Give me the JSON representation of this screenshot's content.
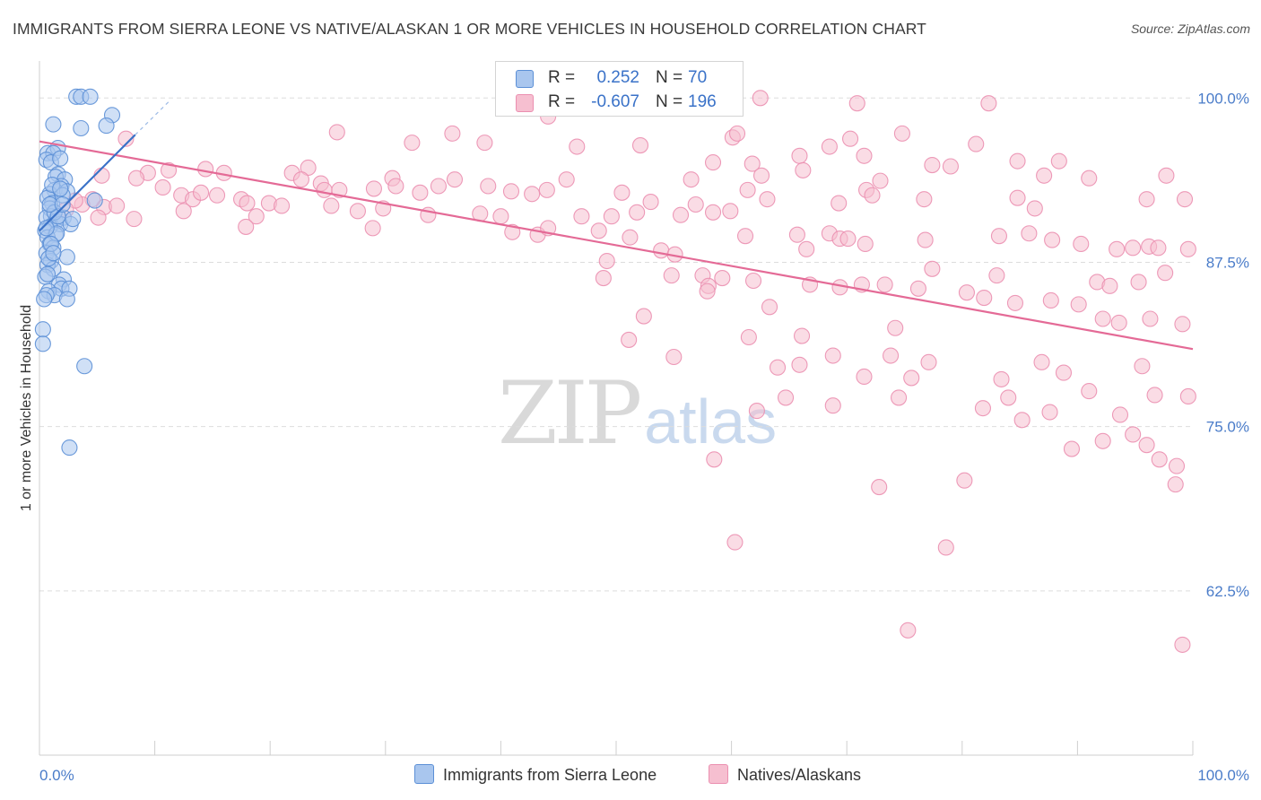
{
  "title": "IMMIGRANTS FROM SIERRA LEONE VS NATIVE/ALASKAN 1 OR MORE VEHICLES IN HOUSEHOLD CORRELATION CHART",
  "source": "Source: ZipAtlas.com",
  "watermark": {
    "zip": "ZIP",
    "atlas": "atlas"
  },
  "legend": {
    "r_label": "R =",
    "n_label": "N =",
    "rows": [
      {
        "name": "Immigrants from Sierra Leone",
        "r": "0.252",
        "n": "70"
      },
      {
        "name": "Natives/Alaskans",
        "r": "-0.607",
        "n": "196"
      }
    ]
  },
  "colors": {
    "blue_fill": "#a9c6ee",
    "blue_stroke": "#5b8fd6",
    "blue_line": "#3a72c8",
    "pink_fill": "#f6bfd0",
    "pink_stroke": "#eb8fb0",
    "pink_line": "#e46a96",
    "axis_label": "#4a7cc9",
    "grid": "#dddddd"
  },
  "chart_data": {
    "type": "scatter",
    "title": "IMMIGRANTS FROM SIERRA LEONE VS NATIVE/ALASKAN 1 OR MORE VEHICLES IN HOUSEHOLD CORRELATION CHART",
    "xlabel": "",
    "ylabel": "1 or more Vehicles in Household",
    "xlim": [
      0,
      100
    ],
    "ylim": [
      50,
      102
    ],
    "x_tick_labels": [
      {
        "value": 0,
        "label": "0.0%"
      },
      {
        "value": 100,
        "label": "100.0%"
      }
    ],
    "y_tick_labels": [
      {
        "value": 100,
        "label": "100.0%"
      },
      {
        "value": 87.5,
        "label": "87.5%"
      },
      {
        "value": 75,
        "label": "75.0%"
      },
      {
        "value": 62.5,
        "label": "62.5%"
      }
    ],
    "series": [
      {
        "name": "Immigrants from Sierra Leone",
        "r": 0.252,
        "n": 70,
        "trend": {
          "x0": 0,
          "y0": 89.9,
          "x1": 8.3,
          "y1": 97.2,
          "dashed_to_x": 11.3,
          "dashed_to_y": 99.8
        },
        "points": [
          [
            3.2,
            100.1
          ],
          [
            3.6,
            100.1
          ],
          [
            4.4,
            100.1
          ],
          [
            6.3,
            98.7
          ],
          [
            1.2,
            98.0
          ],
          [
            5.8,
            97.9
          ],
          [
            3.6,
            97.7
          ],
          [
            0.7,
            95.8
          ],
          [
            1.6,
            96.2
          ],
          [
            1.2,
            95.8
          ],
          [
            0.6,
            95.3
          ],
          [
            1.0,
            95.1
          ],
          [
            1.8,
            95.4
          ],
          [
            1.6,
            94.2
          ],
          [
            1.4,
            94.0
          ],
          [
            2.2,
            93.8
          ],
          [
            1.9,
            93.3
          ],
          [
            1.3,
            93.0
          ],
          [
            0.9,
            92.7
          ],
          [
            2.4,
            92.9
          ],
          [
            0.7,
            92.4
          ],
          [
            1.1,
            92.0
          ],
          [
            0.9,
            91.6
          ],
          [
            1.3,
            91.3
          ],
          [
            1.0,
            91.0
          ],
          [
            0.6,
            90.9
          ],
          [
            1.4,
            90.6
          ],
          [
            2.1,
            90.9
          ],
          [
            1.8,
            90.4
          ],
          [
            0.9,
            90.2
          ],
          [
            2.7,
            90.4
          ],
          [
            0.5,
            89.9
          ],
          [
            1.4,
            89.6
          ],
          [
            0.7,
            89.4
          ],
          [
            0.9,
            88.9
          ],
          [
            1.2,
            88.6
          ],
          [
            0.6,
            88.2
          ],
          [
            2.4,
            87.9
          ],
          [
            1.0,
            87.6
          ],
          [
            0.7,
            87.3
          ],
          [
            1.2,
            87.0
          ],
          [
            0.5,
            86.4
          ],
          [
            2.1,
            86.2
          ],
          [
            1.7,
            85.8
          ],
          [
            1.9,
            85.5
          ],
          [
            0.8,
            85.3
          ],
          [
            1.3,
            85.0
          ],
          [
            0.6,
            85.0
          ],
          [
            2.6,
            85.5
          ],
          [
            2.4,
            84.7
          ],
          [
            0.3,
            82.4
          ],
          [
            0.3,
            81.3
          ],
          [
            3.9,
            79.6
          ],
          [
            2.6,
            73.4
          ],
          [
            4.8,
            92.2
          ],
          [
            1.3,
            91.3
          ],
          [
            2.0,
            92.6
          ],
          [
            1.5,
            89.7
          ],
          [
            0.8,
            87.8
          ],
          [
            1.1,
            93.4
          ],
          [
            0.7,
            86.6
          ],
          [
            1.6,
            91.0
          ],
          [
            2.9,
            90.8
          ],
          [
            0.4,
            84.7
          ],
          [
            1.0,
            88.9
          ],
          [
            1.8,
            93.1
          ],
          [
            0.9,
            91.9
          ],
          [
            1.2,
            88.2
          ],
          [
            2.0,
            91.9
          ],
          [
            0.6,
            90.1
          ]
        ]
      },
      {
        "name": "Natives/Alaskans",
        "r": -0.607,
        "n": 196,
        "trend": {
          "x0": 0,
          "y0": 96.7,
          "x1": 100,
          "y1": 80.9
        },
        "points": [
          [
            62.5,
            100.0
          ],
          [
            70.9,
            99.6
          ],
          [
            82.3,
            99.6
          ],
          [
            44.1,
            98.6
          ],
          [
            25.8,
            97.4
          ],
          [
            35.8,
            97.3
          ],
          [
            7.5,
            96.9
          ],
          [
            60.1,
            97.0
          ],
          [
            60.5,
            97.3
          ],
          [
            74.8,
            97.3
          ],
          [
            70.3,
            96.9
          ],
          [
            68.5,
            96.3
          ],
          [
            46.6,
            96.3
          ],
          [
            32.3,
            96.6
          ],
          [
            38.6,
            96.6
          ],
          [
            52.1,
            96.4
          ],
          [
            71.5,
            95.6
          ],
          [
            81.2,
            96.5
          ],
          [
            65.9,
            95.6
          ],
          [
            58.4,
            95.1
          ],
          [
            61.8,
            95.0
          ],
          [
            84.8,
            95.2
          ],
          [
            88.4,
            95.2
          ],
          [
            79.0,
            94.8
          ],
          [
            77.4,
            94.9
          ],
          [
            66.2,
            94.5
          ],
          [
            21.9,
            94.3
          ],
          [
            23.3,
            94.7
          ],
          [
            14.4,
            94.6
          ],
          [
            16.0,
            94.3
          ],
          [
            11.2,
            94.5
          ],
          [
            9.4,
            94.3
          ],
          [
            5.4,
            94.1
          ],
          [
            8.4,
            93.9
          ],
          [
            22.7,
            93.8
          ],
          [
            30.6,
            93.9
          ],
          [
            36.0,
            93.8
          ],
          [
            45.7,
            93.8
          ],
          [
            56.5,
            93.8
          ],
          [
            62.6,
            94.1
          ],
          [
            72.9,
            93.7
          ],
          [
            91.0,
            93.9
          ],
          [
            87.1,
            94.1
          ],
          [
            97.7,
            94.1
          ],
          [
            24.4,
            93.5
          ],
          [
            24.7,
            93.0
          ],
          [
            26.0,
            93.0
          ],
          [
            29.0,
            93.1
          ],
          [
            30.9,
            93.3
          ],
          [
            33.0,
            92.8
          ],
          [
            34.6,
            93.3
          ],
          [
            38.9,
            93.3
          ],
          [
            40.9,
            92.9
          ],
          [
            42.7,
            92.7
          ],
          [
            44.0,
            93.0
          ],
          [
            50.5,
            92.8
          ],
          [
            61.4,
            93.0
          ],
          [
            63.1,
            92.3
          ],
          [
            69.3,
            92.0
          ],
          [
            71.7,
            93.0
          ],
          [
            72.2,
            92.6
          ],
          [
            76.7,
            92.3
          ],
          [
            84.8,
            92.4
          ],
          [
            96.0,
            92.3
          ],
          [
            86.3,
            91.6
          ],
          [
            99.3,
            92.3
          ],
          [
            10.7,
            93.2
          ],
          [
            12.3,
            92.6
          ],
          [
            13.3,
            92.3
          ],
          [
            14.0,
            92.8
          ],
          [
            15.4,
            92.6
          ],
          [
            17.5,
            92.3
          ],
          [
            18.0,
            92.0
          ],
          [
            19.9,
            92.0
          ],
          [
            21.0,
            91.8
          ],
          [
            25.3,
            91.8
          ],
          [
            27.6,
            91.4
          ],
          [
            29.8,
            91.6
          ],
          [
            33.7,
            91.1
          ],
          [
            38.2,
            91.2
          ],
          [
            40.0,
            91.0
          ],
          [
            47.0,
            91.0
          ],
          [
            49.6,
            91.0
          ],
          [
            51.8,
            91.3
          ],
          [
            53.0,
            92.1
          ],
          [
            55.6,
            91.1
          ],
          [
            56.9,
            91.9
          ],
          [
            58.4,
            91.3
          ],
          [
            59.9,
            91.4
          ],
          [
            18.8,
            91.0
          ],
          [
            5.6,
            91.7
          ],
          [
            4.6,
            92.3
          ],
          [
            3.7,
            91.9
          ],
          [
            3.1,
            92.2
          ],
          [
            6.7,
            91.8
          ],
          [
            12.5,
            91.4
          ],
          [
            8.2,
            90.8
          ],
          [
            2.3,
            91.5
          ],
          [
            5.1,
            90.9
          ],
          [
            17.9,
            90.2
          ],
          [
            28.9,
            90.1
          ],
          [
            41.0,
            89.8
          ],
          [
            43.2,
            89.6
          ],
          [
            44.1,
            90.1
          ],
          [
            48.5,
            89.9
          ],
          [
            51.2,
            89.4
          ],
          [
            53.9,
            88.4
          ],
          [
            61.2,
            89.5
          ],
          [
            65.7,
            89.6
          ],
          [
            68.5,
            89.7
          ],
          [
            69.4,
            89.3
          ],
          [
            70.1,
            89.3
          ],
          [
            71.6,
            88.9
          ],
          [
            76.8,
            89.2
          ],
          [
            83.2,
            89.5
          ],
          [
            85.8,
            89.7
          ],
          [
            87.8,
            89.2
          ],
          [
            90.3,
            88.9
          ],
          [
            93.4,
            88.5
          ],
          [
            94.8,
            88.6
          ],
          [
            96.2,
            88.7
          ],
          [
            97.0,
            88.6
          ],
          [
            99.6,
            88.5
          ],
          [
            66.5,
            88.5
          ],
          [
            77.4,
            87.0
          ],
          [
            83.0,
            86.5
          ],
          [
            91.7,
            86.0
          ],
          [
            92.8,
            85.7
          ],
          [
            95.3,
            86.0
          ],
          [
            97.6,
            86.7
          ],
          [
            55.1,
            88.1
          ],
          [
            49.2,
            87.6
          ],
          [
            48.9,
            86.3
          ],
          [
            54.8,
            86.5
          ],
          [
            57.5,
            86.5
          ],
          [
            59.2,
            86.3
          ],
          [
            58.0,
            85.7
          ],
          [
            61.9,
            86.1
          ],
          [
            57.9,
            85.3
          ],
          [
            66.8,
            85.8
          ],
          [
            69.4,
            85.6
          ],
          [
            71.3,
            85.8
          ],
          [
            73.3,
            85.8
          ],
          [
            76.2,
            85.5
          ],
          [
            80.4,
            85.2
          ],
          [
            81.9,
            84.8
          ],
          [
            84.6,
            84.4
          ],
          [
            87.7,
            84.6
          ],
          [
            90.1,
            84.3
          ],
          [
            92.2,
            83.2
          ],
          [
            93.6,
            82.9
          ],
          [
            96.3,
            83.2
          ],
          [
            99.1,
            82.8
          ],
          [
            63.3,
            84.1
          ],
          [
            61.5,
            81.8
          ],
          [
            51.1,
            81.6
          ],
          [
            55.0,
            80.3
          ],
          [
            64.0,
            79.5
          ],
          [
            65.9,
            79.7
          ],
          [
            71.5,
            78.8
          ],
          [
            73.8,
            80.4
          ],
          [
            77.1,
            79.9
          ],
          [
            83.4,
            78.6
          ],
          [
            86.9,
            79.9
          ],
          [
            88.8,
            79.1
          ],
          [
            91.0,
            77.7
          ],
          [
            93.7,
            75.9
          ],
          [
            96.7,
            77.4
          ],
          [
            99.6,
            77.3
          ],
          [
            62.2,
            76.2
          ],
          [
            64.7,
            77.2
          ],
          [
            68.8,
            76.6
          ],
          [
            74.5,
            77.2
          ],
          [
            81.8,
            76.4
          ],
          [
            84.0,
            77.2
          ],
          [
            87.6,
            76.1
          ],
          [
            92.2,
            73.9
          ],
          [
            94.8,
            74.4
          ],
          [
            96.0,
            73.6
          ],
          [
            97.1,
            72.5
          ],
          [
            98.6,
            72.0
          ],
          [
            58.5,
            72.5
          ],
          [
            60.3,
            66.2
          ],
          [
            78.6,
            65.8
          ],
          [
            72.8,
            70.4
          ],
          [
            75.3,
            59.5
          ],
          [
            99.1,
            58.4
          ],
          [
            66.1,
            81.9
          ],
          [
            68.8,
            80.4
          ],
          [
            75.6,
            78.7
          ],
          [
            85.2,
            75.5
          ],
          [
            89.5,
            73.3
          ],
          [
            80.2,
            70.9
          ],
          [
            52.4,
            83.4
          ],
          [
            74.2,
            82.5
          ],
          [
            95.6,
            79.6
          ],
          [
            98.5,
            70.6
          ]
        ]
      }
    ]
  }
}
